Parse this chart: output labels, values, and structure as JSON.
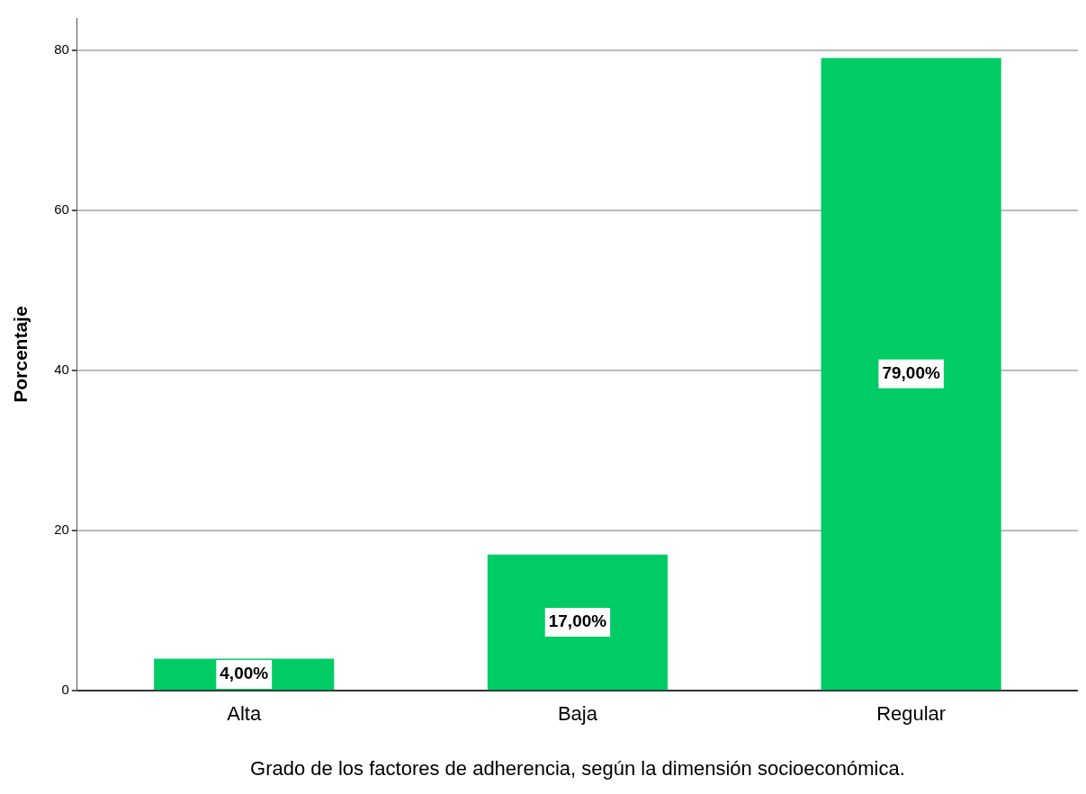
{
  "chart_data": {
    "type": "bar",
    "xlabel": "Grado de los factores de adherencia, según la dimensión socioeconómica.",
    "ylabel": "Porcentaje",
    "categories": [
      "Alta",
      "Baja",
      "Regular"
    ],
    "values": [
      4,
      17,
      79
    ],
    "value_labels": [
      "4,00%",
      "17,00%",
      "79,00%"
    ],
    "color": "#00cc66",
    "ylim": [
      0,
      84
    ],
    "yticks": [
      0,
      20,
      40,
      60,
      80
    ],
    "grid": "y",
    "legend": false
  }
}
